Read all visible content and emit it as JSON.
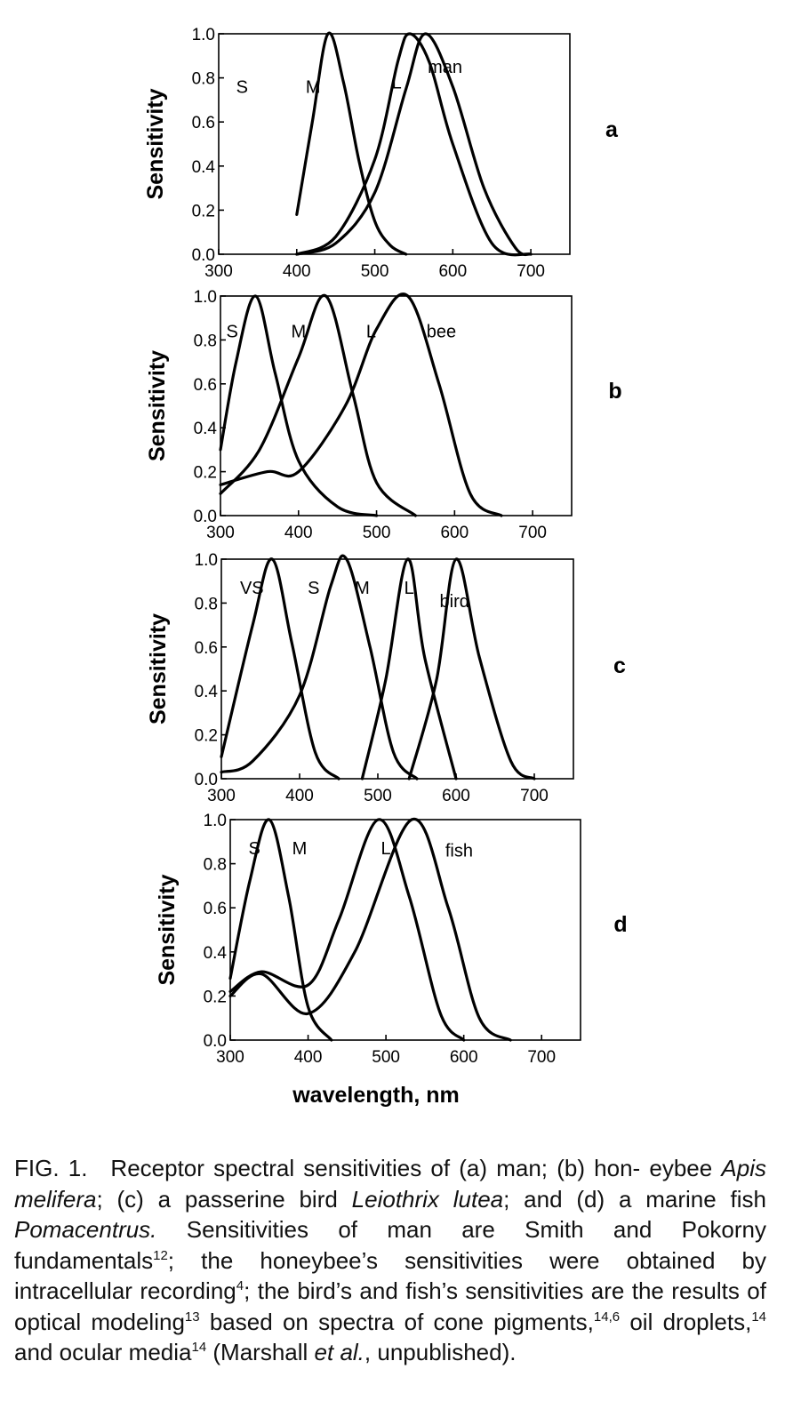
{
  "chart_data": [
    {
      "type": "line",
      "panel": "a",
      "organism": "man",
      "ylabel": "Sensitivity",
      "xlabel": "",
      "xlim": [
        300,
        750
      ],
      "ylim": [
        0,
        1
      ],
      "xticks": [
        "300",
        "400",
        "500",
        "600",
        "700"
      ],
      "yticks": [
        "0.0",
        "0.2",
        "0.4",
        "0.6",
        "0.8",
        "1.0"
      ],
      "series": [
        {
          "name": "S",
          "peak": 440,
          "x": [
            400,
            420,
            440,
            460,
            480,
            500,
            520,
            540
          ],
          "y": [
            0.18,
            0.6,
            1.0,
            0.78,
            0.42,
            0.15,
            0.04,
            0.0
          ]
        },
        {
          "name": "M",
          "peak": 545,
          "x": [
            400,
            450,
            500,
            530,
            545,
            570,
            600,
            650,
            700
          ],
          "y": [
            0.0,
            0.08,
            0.43,
            0.88,
            1.0,
            0.87,
            0.5,
            0.05,
            0.0
          ]
        },
        {
          "name": "L",
          "peak": 565,
          "x": [
            400,
            450,
            500,
            540,
            565,
            600,
            640,
            680,
            700
          ],
          "y": [
            0.0,
            0.05,
            0.28,
            0.75,
            1.0,
            0.76,
            0.3,
            0.03,
            0.0
          ]
        }
      ]
    },
    {
      "type": "line",
      "panel": "b",
      "organism": "bee",
      "ylabel": "Sensitivity",
      "xlabel": "",
      "xlim": [
        300,
        750
      ],
      "ylim": [
        0,
        1
      ],
      "xticks": [
        "300",
        "400",
        "500",
        "600",
        "700"
      ],
      "yticks": [
        "0.0",
        "0.2",
        "0.4",
        "0.6",
        "0.8",
        "1.0"
      ],
      "series": [
        {
          "name": "S",
          "peak": 345,
          "x": [
            300,
            320,
            345,
            370,
            400,
            450,
            500
          ],
          "y": [
            0.3,
            0.7,
            1.0,
            0.65,
            0.25,
            0.04,
            0.0
          ]
        },
        {
          "name": "M",
          "peak": 435,
          "x": [
            300,
            350,
            400,
            435,
            470,
            500,
            550
          ],
          "y": [
            0.1,
            0.3,
            0.72,
            1.0,
            0.55,
            0.15,
            0.0
          ]
        },
        {
          "name": "L",
          "peak": 540,
          "x": [
            300,
            360,
            400,
            460,
            500,
            540,
            580,
            620,
            660
          ],
          "y": [
            0.14,
            0.2,
            0.2,
            0.5,
            0.85,
            1.0,
            0.6,
            0.1,
            0.0
          ]
        }
      ]
    },
    {
      "type": "line",
      "panel": "c",
      "organism": "bird",
      "ylabel": "Sensitivity",
      "xlabel": "",
      "xlim": [
        300,
        750
      ],
      "ylim": [
        0,
        1
      ],
      "xticks": [
        "300",
        "400",
        "500",
        "600",
        "700"
      ],
      "yticks": [
        "0.0",
        "0.2",
        "0.4",
        "0.6",
        "0.8",
        "1.0"
      ],
      "series": [
        {
          "name": "VS",
          "peak": 365,
          "x": [
            300,
            340,
            365,
            390,
            420,
            450
          ],
          "y": [
            0.1,
            0.7,
            1.0,
            0.62,
            0.12,
            0.0
          ]
        },
        {
          "name": "S",
          "peak": 460,
          "x": [
            300,
            340,
            400,
            440,
            460,
            490,
            520,
            550
          ],
          "y": [
            0.03,
            0.08,
            0.38,
            0.88,
            1.0,
            0.6,
            0.12,
            0.0
          ]
        },
        {
          "name": "M",
          "peak": 538,
          "x": [
            480,
            510,
            538,
            560,
            600
          ],
          "y": [
            0.0,
            0.45,
            1.0,
            0.55,
            0.0
          ]
        },
        {
          "name": "L",
          "peak": 600,
          "x": [
            540,
            575,
            600,
            630,
            670,
            700
          ],
          "y": [
            0.0,
            0.45,
            1.0,
            0.55,
            0.08,
            0.0
          ]
        }
      ]
    },
    {
      "type": "line",
      "panel": "d",
      "organism": "fish",
      "ylabel": "Sensitivity",
      "xlabel": "wavelength, nm",
      "xlim": [
        300,
        750
      ],
      "ylim": [
        0,
        1
      ],
      "xticks": [
        "300",
        "400",
        "500",
        "600",
        "700"
      ],
      "yticks": [
        "0.0",
        "0.2",
        "0.4",
        "0.6",
        "0.8",
        "1.0"
      ],
      "series": [
        {
          "name": "S",
          "peak": 350,
          "x": [
            300,
            325,
            350,
            375,
            400,
            430
          ],
          "y": [
            0.28,
            0.72,
            1.0,
            0.65,
            0.15,
            0.0
          ]
        },
        {
          "name": "M",
          "peak": 490,
          "x": [
            300,
            340,
            400,
            440,
            490,
            530,
            570,
            600
          ],
          "y": [
            0.22,
            0.31,
            0.25,
            0.55,
            1.0,
            0.65,
            0.12,
            0.0
          ]
        },
        {
          "name": "L",
          "peak": 533,
          "x": [
            300,
            340,
            400,
            460,
            533,
            580,
            620,
            660
          ],
          "y": [
            0.2,
            0.3,
            0.12,
            0.4,
            1.0,
            0.6,
            0.1,
            0.0
          ]
        }
      ]
    }
  ],
  "caption": {
    "fig_num": "FIG. 1.",
    "line1": "Receptor spectral sensitivities of (a) man; (b) hon-",
    "line2a": "eybee ",
    "line2b": "Apis melifera",
    "line2c": "; (c) a passerine bird ",
    "line2d": "Leiothrix lutea",
    "line2e": "; and",
    "line3a": "(d) a marine fish ",
    "line3b": "Pomacentrus.",
    "line3c": " Sensitivities of man are Smith",
    "line4a": "and Pokorny fundamentals",
    "ref12": "12",
    "line4b": "; the honeybee’s sensitivities",
    "line5a": "were obtained by intracellular recording",
    "ref4": "4",
    "line5b": "; the bird’s and",
    "line6a": "fish’s sensitivities are the results of optical modeling",
    "ref13": "13",
    "line6b": " based",
    "line7a": "on spectra of cone pigments,",
    "ref146": "14,6",
    "line7b": " oil droplets,",
    "ref14a": "14",
    "line7c": " and ocular",
    "line8a": "media",
    "ref14b": "14",
    "line8b": " (Marshall ",
    "line8c": "et al.",
    "line8d": ", unpublished)."
  }
}
